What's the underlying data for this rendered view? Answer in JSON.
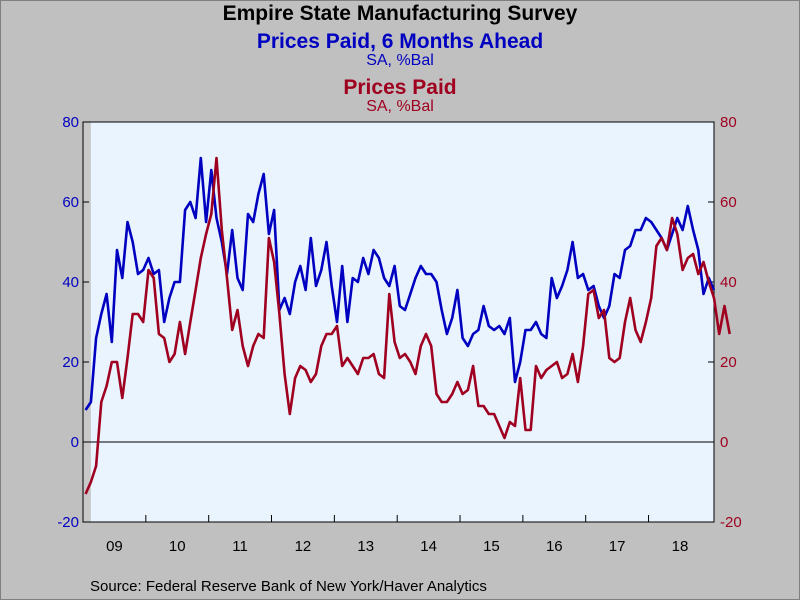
{
  "chart_data": {
    "type": "line",
    "title": "Empire State Manufacturing Survey",
    "series": [
      {
        "name": "Prices Paid, 6 Months Ahead",
        "subtitle": "SA, %Bal",
        "axis": "left",
        "color": "#0000c0",
        "start": "2009-01",
        "values": [
          8,
          10,
          26,
          32,
          37,
          25,
          48,
          41,
          55,
          50,
          42,
          43,
          46,
          42,
          43,
          30,
          36,
          40,
          40,
          58,
          60,
          56,
          71,
          55,
          68,
          56,
          50,
          42,
          53,
          41,
          38,
          57,
          55,
          62,
          67,
          52,
          58,
          33,
          36,
          32,
          40,
          44,
          38,
          51,
          39,
          43,
          50,
          39,
          30,
          44,
          30,
          41,
          40,
          46,
          42,
          48,
          46,
          41,
          39,
          44,
          34,
          33,
          37,
          41,
          44,
          42,
          42,
          40,
          33,
          27,
          31,
          38,
          26,
          24,
          27,
          28,
          34,
          29,
          28,
          29,
          27,
          31,
          15,
          20,
          28,
          28,
          30,
          27,
          26,
          41,
          36,
          39,
          43,
          50,
          41,
          42,
          38,
          39,
          34,
          31,
          34,
          42,
          41,
          48,
          49,
          53,
          53,
          56,
          55,
          53,
          51,
          48,
          52,
          56,
          53,
          59,
          53,
          48,
          37,
          41,
          38
        ]
      },
      {
        "name": "Prices Paid",
        "subtitle": "SA, %Bal",
        "axis": "right",
        "color": "#a00020",
        "start": "2009-01",
        "values": [
          -13,
          -10,
          -6,
          10,
          14,
          20,
          20,
          11,
          21,
          32,
          32,
          30,
          43,
          41,
          27,
          26,
          20,
          22,
          30,
          22,
          30,
          38,
          46,
          52,
          57,
          71,
          53,
          41,
          28,
          33,
          24,
          19,
          24,
          27,
          26,
          51,
          45,
          32,
          17,
          7,
          16,
          19,
          18,
          15,
          17,
          24,
          27,
          27,
          29,
          19,
          21,
          19,
          17,
          21,
          21,
          22,
          17,
          16,
          37,
          25,
          21,
          22,
          20,
          17,
          24,
          27,
          24,
          12,
          10,
          10,
          12,
          15,
          12,
          13,
          19,
          9,
          9,
          7,
          7,
          4,
          1,
          5,
          4,
          16,
          3,
          3,
          19,
          16,
          18,
          19,
          20,
          16,
          17,
          22,
          15,
          24,
          37,
          38,
          31,
          33,
          21,
          20,
          21,
          30,
          36,
          28,
          25,
          30,
          36,
          49,
          51,
          48,
          56,
          52,
          43,
          46,
          47,
          42,
          45,
          40,
          36,
          27,
          34,
          27
        ]
      }
    ],
    "x_tick_labels": [
      "09",
      "10",
      "11",
      "12",
      "13",
      "14",
      "15",
      "16",
      "17",
      "18"
    ],
    "y_left": {
      "min": -20,
      "max": 80,
      "ticks": [
        80,
        60,
        40,
        20,
        0,
        -20
      ]
    },
    "y_right": {
      "min": -20,
      "max": 80,
      "ticks": [
        80,
        60,
        40,
        20,
        0,
        -20
      ]
    },
    "zero_line": true,
    "grid": false,
    "recession_shade": "2009-01 to 2009-06"
  },
  "titles": {
    "main": "Empire State Manufacturing Survey",
    "series1_title": "Prices Paid, 6 Months Ahead",
    "series1_sub": "SA, %Bal",
    "series2_title": "Prices Paid",
    "series2_sub": "SA, %Bal"
  },
  "source": "Source:  Federal Reserve Bank of New York/Haver Analytics"
}
